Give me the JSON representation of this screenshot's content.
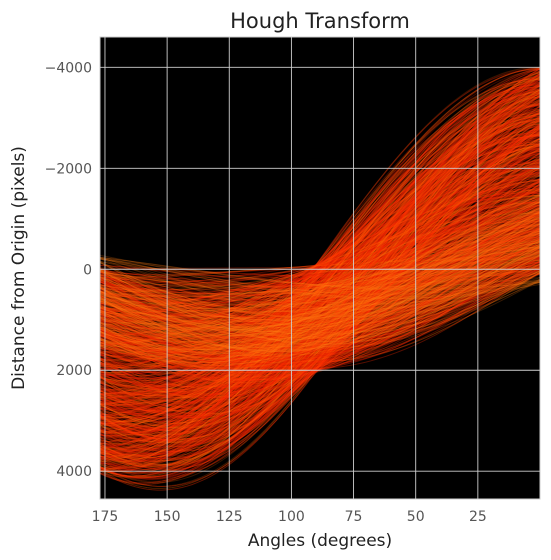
{
  "chart_data": {
    "type": "heatmap",
    "title": "Hough Transform",
    "xlabel": "Angles (degrees)",
    "ylabel": "Distance from Origin (pixels)",
    "xlim": [
      177,
      0
    ],
    "ylim": [
      4550,
      -4600
    ],
    "x_ticks": [
      175,
      150,
      125,
      100,
      75,
      50,
      25
    ],
    "y_ticks": [
      -4000,
      -2000,
      0,
      2000,
      4000
    ],
    "y_tick_labels": [
      "−4000",
      "−2000",
      "0",
      "2000",
      "4000"
    ],
    "grid": true,
    "colormap": "hot",
    "background_color": "#000000",
    "description_of_bands": [
      {
        "angle_deg": 0,
        "distance_min": -4000,
        "distance_max": 100
      },
      {
        "angle_deg": 90,
        "distance_min": -150,
        "distance_max": 2050
      },
      {
        "angle_deg": 157,
        "distance_min": -200,
        "distance_max": 4500
      },
      {
        "angle_deg": 177,
        "distance_min": -50,
        "distance_max": 4150
      }
    ]
  }
}
